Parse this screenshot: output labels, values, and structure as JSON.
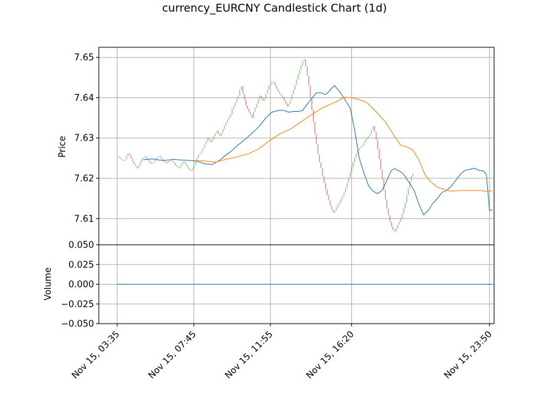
{
  "chart_data": {
    "type": "candlestick",
    "title": "currency_EURCNY Candlestick Chart (1d)",
    "price_panel": {
      "ylabel": "Price",
      "ylim": [
        7.6035,
        7.6525
      ],
      "yticks": [
        7.61,
        7.62,
        7.63,
        7.64,
        7.65
      ],
      "ytick_labels": [
        "7.61",
        "7.62",
        "7.63",
        "7.64",
        "7.65"
      ],
      "grid": true
    },
    "volume_panel": {
      "ylabel": "Volume",
      "ylim": [
        -0.05,
        0.05
      ],
      "yticks": [
        -0.05,
        -0.025,
        0.0,
        0.025,
        0.05
      ],
      "ytick_labels": [
        "−0.050",
        "−0.025",
        "0.000",
        "0.025",
        "0.050"
      ],
      "volume_values": "all 0",
      "grid": true
    },
    "x_axis": {
      "ticks_minutes": [
        215,
        465,
        715,
        980,
        1430
      ],
      "tick_labels": [
        "Nov 15, 03:35",
        "Nov 15, 07:45",
        "Nov 15, 11:55",
        "Nov 15, 16:20",
        "Nov 15, 23:50"
      ],
      "xlim_minutes": [
        155,
        1445
      ]
    },
    "candles": {
      "start_minute": 215,
      "interval_minutes": 5,
      "closes": [
        7.6255,
        7.6252,
        7.6248,
        7.6245,
        7.6243,
        7.6246,
        7.6255,
        7.6262,
        7.6258,
        7.625,
        7.6242,
        7.6235,
        7.623,
        7.6225,
        7.6232,
        7.624,
        7.6248,
        7.6252,
        7.6255,
        7.625,
        7.6245,
        7.624,
        7.6236,
        7.6238,
        7.6242,
        7.6248,
        7.6252,
        7.6255,
        7.6252,
        7.6248,
        7.6244,
        7.624,
        7.6237,
        7.624,
        7.6243,
        7.6245,
        7.6242,
        7.6238,
        7.6232,
        7.6228,
        7.6225,
        7.623,
        7.6236,
        7.6241,
        7.6238,
        7.6232,
        7.6226,
        7.622,
        7.6218,
        7.6224,
        7.6232,
        7.6242,
        7.625,
        7.6258,
        7.6262,
        7.6268,
        7.6275,
        7.6284,
        7.6292,
        7.63,
        7.6295,
        7.629,
        7.6296,
        7.6304,
        7.6312,
        7.6318,
        7.631,
        7.6305,
        7.6312,
        7.6322,
        7.633,
        7.6338,
        7.6346,
        7.6352,
        7.636,
        7.6372,
        7.638,
        7.6388,
        7.6396,
        7.6405,
        7.642,
        7.6428,
        7.641,
        7.6395,
        7.638,
        7.6372,
        7.6365,
        7.6358,
        7.635,
        7.6365,
        7.6375,
        7.6385,
        7.6395,
        7.6405,
        7.64,
        7.6392,
        7.6398,
        7.641,
        7.642,
        7.643,
        7.6435,
        7.644,
        7.6438,
        7.643,
        7.6422,
        7.6415,
        7.641,
        7.6405,
        7.64,
        7.6392,
        7.6385,
        7.6378,
        7.6385,
        7.6395,
        7.6408,
        7.642,
        7.6432,
        7.6445,
        7.6458,
        7.647,
        7.648,
        7.649,
        7.6495,
        7.6478,
        7.6455,
        7.643,
        7.64,
        7.637,
        7.634,
        7.631,
        7.6285,
        7.626,
        7.624,
        7.6225,
        7.6205,
        7.6188,
        7.6172,
        7.6158,
        7.6145,
        7.6132,
        7.6122,
        7.6115,
        7.612,
        7.6128,
        7.6135,
        7.614,
        7.6148,
        7.6156,
        7.6165,
        7.6175,
        7.6188,
        7.6202,
        7.6215,
        7.6228,
        7.624,
        7.6252,
        7.6262,
        7.627,
        7.6275,
        7.6278,
        7.6282,
        7.6288,
        7.6295,
        7.63,
        7.6305,
        7.631,
        7.632,
        7.633,
        7.6315,
        7.6295,
        7.6272,
        7.6248,
        7.6222,
        7.6198,
        7.6172,
        7.6148,
        7.6125,
        7.6108,
        7.6092,
        7.608,
        7.6072,
        7.6068,
        7.6075,
        7.6085,
        7.6092,
        7.61,
        7.6112,
        7.6125,
        7.614,
        7.6158,
        7.6175,
        7.6192,
        7.6205,
        7.6212
      ]
    },
    "series": [
      {
        "color": "#1f77b4",
        "x_minutes": [
          300,
          330,
          365,
          400,
          435,
          470,
          500,
          525,
          550,
          565,
          585,
          605,
          630,
          655,
          680,
          700,
          720,
          740,
          750,
          760,
          775,
          790,
          805,
          820,
          835,
          850,
          865,
          880,
          895,
          905,
          915,
          925,
          935,
          945,
          960,
          975,
          990,
          1005,
          1020,
          1035,
          1050,
          1065,
          1080,
          1095,
          1110,
          1120,
          1130,
          1140,
          1150,
          1160,
          1170,
          1185,
          1200,
          1215,
          1230,
          1245,
          1260,
          1275,
          1290,
          1305,
          1320,
          1335,
          1350,
          1365,
          1380,
          1395,
          1410,
          1420,
          1430,
          1440
        ],
        "values": [
          7.6246,
          7.6248,
          7.6244,
          7.6247,
          7.6245,
          7.6243,
          7.6236,
          7.6234,
          7.6245,
          7.6255,
          7.6266,
          7.628,
          7.6295,
          7.6312,
          7.633,
          7.635,
          7.6364,
          7.6368,
          7.6369,
          7.6368,
          7.6364,
          7.6366,
          7.6366,
          7.6368,
          7.6384,
          7.6398,
          7.6412,
          7.6412,
          7.6408,
          7.6414,
          7.6424,
          7.643,
          7.642,
          7.6411,
          7.6393,
          7.6375,
          7.632,
          7.625,
          7.6214,
          7.6182,
          7.6168,
          7.6162,
          7.617,
          7.6195,
          7.622,
          7.6224,
          7.622,
          7.6216,
          7.621,
          7.6198,
          7.6188,
          7.6168,
          7.6135,
          7.6109,
          7.612,
          7.6138,
          7.615,
          7.6165,
          7.617,
          7.618,
          7.6195,
          7.621,
          7.622,
          7.6222,
          7.6225,
          7.622,
          7.6218,
          7.621,
          7.612,
          7.6122
        ]
      },
      {
        "color": "#ff7f0e",
        "x_minutes": [
          465,
          500,
          535,
          570,
          605,
          640,
          675,
          710,
          745,
          780,
          815,
          850,
          885,
          915,
          935,
          955,
          980,
          1005,
          1030,
          1060,
          1090,
          1115,
          1140,
          1160,
          1180,
          1200,
          1220,
          1240,
          1260,
          1280,
          1300,
          1320,
          1340,
          1360,
          1380,
          1400,
          1420,
          1440
        ],
        "values": [
          7.6244,
          7.6243,
          7.624,
          7.6247,
          7.6253,
          7.626,
          7.6272,
          7.6292,
          7.631,
          7.6322,
          7.634,
          7.6358,
          7.6375,
          7.6385,
          7.6392,
          7.6401,
          7.64,
          7.6395,
          7.6388,
          7.6365,
          7.634,
          7.631,
          7.6282,
          7.6278,
          7.627,
          7.6245,
          7.6208,
          7.619,
          7.6178,
          7.6173,
          7.6168,
          7.6169,
          7.617,
          7.617,
          7.617,
          7.617,
          7.6167,
          7.617
        ]
      }
    ]
  }
}
